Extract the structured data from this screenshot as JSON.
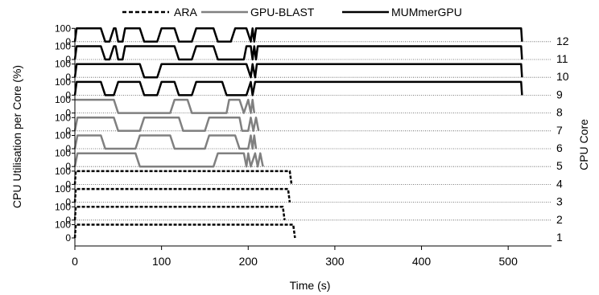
{
  "chart_data": {
    "type": "line",
    "xlabel": "Time (s)",
    "ylabel": "CPU Utilisation per Core (%)",
    "y2label": "CPU Core",
    "xlim": [
      0,
      550
    ],
    "xticks": [
      0,
      100,
      200,
      300,
      400,
      500
    ],
    "core_ylim": [
      0,
      100
    ],
    "core_tick_labels": [
      "0",
      "100"
    ],
    "cores": [
      1,
      2,
      3,
      4,
      5,
      6,
      7,
      8,
      9,
      10,
      11,
      12
    ],
    "grid": "horizontal dotted lines between cores",
    "legend_position": "top-center",
    "series": [
      {
        "name": "ARA",
        "style": "dashed",
        "color": "#000000",
        "cores": [
          {
            "core": 1,
            "points": [
              [
                0,
                0
              ],
              [
                1,
                100
              ],
              [
                252,
                100
              ],
              [
                254,
                0
              ]
            ]
          },
          {
            "core": 2,
            "points": [
              [
                0,
                0
              ],
              [
                1,
                100
              ],
              [
                240,
                100
              ],
              [
                242,
                0
              ]
            ]
          },
          {
            "core": 3,
            "points": [
              [
                0,
                0
              ],
              [
                1,
                100
              ],
              [
                246,
                100
              ],
              [
                248,
                0
              ]
            ]
          },
          {
            "core": 4,
            "points": [
              [
                0,
                0
              ],
              [
                1,
                100
              ],
              [
                248,
                100
              ],
              [
                250,
                0
              ]
            ]
          }
        ]
      },
      {
        "name": "GPU-BLAST",
        "style": "solid",
        "color": "#808080",
        "cores": [
          {
            "core": 5,
            "points": [
              [
                0,
                0
              ],
              [
                3,
                100
              ],
              [
                70,
                100
              ],
              [
                75,
                0
              ],
              [
                160,
                0
              ],
              [
                165,
                100
              ],
              [
                195,
                100
              ],
              [
                198,
                0
              ],
              [
                200,
                100
              ],
              [
                203,
                0
              ],
              [
                208,
                100
              ],
              [
                211,
                0
              ],
              [
                214,
                100
              ],
              [
                217,
                0
              ]
            ]
          },
          {
            "core": 6,
            "points": [
              [
                0,
                0
              ],
              [
                3,
                100
              ],
              [
                30,
                100
              ],
              [
                35,
                0
              ],
              [
                70,
                0
              ],
              [
                75,
                100
              ],
              [
                110,
                100
              ],
              [
                115,
                0
              ],
              [
                150,
                0
              ],
              [
                155,
                100
              ],
              [
                185,
                100
              ],
              [
                190,
                0
              ],
              [
                200,
                0
              ],
              [
                203,
                100
              ],
              [
                205,
                0
              ],
              [
                207,
                100
              ],
              [
                209,
                0
              ]
            ]
          },
          {
            "core": 7,
            "points": [
              [
                0,
                0
              ],
              [
                3,
                100
              ],
              [
                45,
                100
              ],
              [
                50,
                0
              ],
              [
                75,
                0
              ],
              [
                80,
                100
              ],
              [
                120,
                100
              ],
              [
                125,
                0
              ],
              [
                150,
                0
              ],
              [
                155,
                100
              ],
              [
                190,
                100
              ],
              [
                193,
                0
              ],
              [
                200,
                0
              ],
              [
                203,
                100
              ],
              [
                206,
                0
              ],
              [
                209,
                100
              ],
              [
                212,
                0
              ]
            ]
          },
          {
            "core": 8,
            "points": [
              [
                0,
                100
              ],
              [
                5,
                100
              ],
              [
                45,
                100
              ],
              [
                50,
                0
              ],
              [
                110,
                0
              ],
              [
                115,
                100
              ],
              [
                130,
                100
              ],
              [
                135,
                0
              ],
              [
                175,
                0
              ],
              [
                178,
                100
              ],
              [
                190,
                100
              ],
              [
                195,
                0
              ],
              [
                200,
                100
              ],
              [
                203,
                0
              ],
              [
                205,
                100
              ],
              [
                207,
                0
              ]
            ]
          }
        ]
      },
      {
        "name": "MUMmerGPU",
        "style": "solid",
        "color": "#000000",
        "cores": [
          {
            "core": 9,
            "points": [
              [
                0,
                0
              ],
              [
                2,
                100
              ],
              [
                30,
                100
              ],
              [
                35,
                0
              ],
              [
                45,
                0
              ],
              [
                50,
                100
              ],
              [
                75,
                100
              ],
              [
                80,
                0
              ],
              [
                95,
                0
              ],
              [
                100,
                100
              ],
              [
                115,
                100
              ],
              [
                120,
                0
              ],
              [
                135,
                0
              ],
              [
                140,
                100
              ],
              [
                170,
                100
              ],
              [
                175,
                0
              ],
              [
                198,
                0
              ],
              [
                203,
                100
              ],
              [
                205,
                0
              ],
              [
                208,
                100
              ],
              [
                515,
                100
              ],
              [
                516,
                0
              ]
            ]
          },
          {
            "core": 10,
            "points": [
              [
                0,
                0
              ],
              [
                2,
                100
              ],
              [
                75,
                100
              ],
              [
                80,
                0
              ],
              [
                95,
                0
              ],
              [
                100,
                100
              ],
              [
                198,
                100
              ],
              [
                203,
                0
              ],
              [
                205,
                100
              ],
              [
                208,
                0
              ],
              [
                210,
                100
              ],
              [
                515,
                100
              ],
              [
                516,
                0
              ]
            ]
          },
          {
            "core": 11,
            "points": [
              [
                0,
                0
              ],
              [
                2,
                100
              ],
              [
                30,
                100
              ],
              [
                35,
                0
              ],
              [
                40,
                0
              ],
              [
                45,
                100
              ],
              [
                47,
                100
              ],
              [
                50,
                0
              ],
              [
                55,
                0
              ],
              [
                58,
                100
              ],
              [
                115,
                100
              ],
              [
                120,
                0
              ],
              [
                135,
                0
              ],
              [
                140,
                100
              ],
              [
                160,
                100
              ],
              [
                165,
                0
              ],
              [
                195,
                0
              ],
              [
                198,
                100
              ],
              [
                203,
                100
              ],
              [
                205,
                0
              ],
              [
                207,
                100
              ],
              [
                209,
                0
              ],
              [
                211,
                100
              ],
              [
                515,
                100
              ],
              [
                516,
                0
              ]
            ]
          },
          {
            "core": 12,
            "points": [
              [
                0,
                0
              ],
              [
                2,
                100
              ],
              [
                30,
                100
              ],
              [
                35,
                0
              ],
              [
                40,
                0
              ],
              [
                45,
                100
              ],
              [
                47,
                100
              ],
              [
                50,
                0
              ],
              [
                55,
                0
              ],
              [
                58,
                100
              ],
              [
                75,
                100
              ],
              [
                80,
                0
              ],
              [
                95,
                0
              ],
              [
                100,
                100
              ],
              [
                115,
                100
              ],
              [
                120,
                0
              ],
              [
                135,
                0
              ],
              [
                140,
                100
              ],
              [
                160,
                100
              ],
              [
                165,
                0
              ],
              [
                180,
                0
              ],
              [
                185,
                100
              ],
              [
                198,
                100
              ],
              [
                203,
                0
              ],
              [
                205,
                100
              ],
              [
                207,
                0
              ],
              [
                209,
                100
              ],
              [
                515,
                100
              ],
              [
                516,
                0
              ]
            ]
          }
        ]
      }
    ]
  }
}
